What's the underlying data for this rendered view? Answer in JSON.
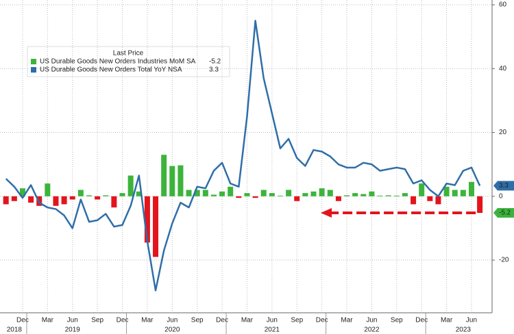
{
  "chart_data": {
    "type": "bar_line",
    "legend_title": "Last Price",
    "categories": [
      null,
      null,
      "Dec",
      null,
      null,
      "Mar",
      null,
      null,
      "Jun",
      null,
      null,
      "Sep",
      null,
      null,
      "Dec",
      null,
      null,
      "Mar",
      null,
      null,
      "Jun",
      null,
      null,
      "Sep",
      null,
      null,
      "Dec",
      null,
      null,
      "Mar",
      null,
      null,
      "Jun",
      null,
      null,
      "Sep",
      null,
      null,
      "Dec",
      null,
      null,
      "Mar",
      null,
      null,
      "Jun",
      null,
      null,
      "Sep",
      null,
      null,
      "Dec",
      null,
      null,
      "Mar",
      null,
      null,
      "Jun",
      null
    ],
    "years": [
      null,
      "2018",
      null,
      null,
      null,
      null,
      null,
      null,
      "2019",
      null,
      null,
      null,
      null,
      null,
      null,
      null,
      null,
      null,
      null,
      null,
      "2020",
      null,
      null,
      null,
      null,
      null,
      null,
      null,
      null,
      null,
      null,
      null,
      "2021",
      null,
      null,
      null,
      null,
      null,
      null,
      null,
      null,
      null,
      null,
      null,
      "2022",
      null,
      null,
      null,
      null,
      null,
      null,
      null,
      null,
      null,
      null,
      "2023",
      null,
      null
    ],
    "series": [
      {
        "name": "US Durable Goods New Orders Industries MoM SA",
        "last": -5.2,
        "type": "bar",
        "color": "#3cb43c",
        "negative_color": "#e3141c",
        "values": [
          -2.5,
          -1.5,
          2.5,
          -2,
          -3,
          4,
          -3,
          -2.5,
          -1,
          2,
          0.3,
          -1,
          0.3,
          -3.5,
          1,
          6.5,
          1.5,
          -14.5,
          -19,
          13,
          9.5,
          9.7,
          2,
          2,
          2,
          0.5,
          1.5,
          3,
          -0.5,
          1,
          -0.5,
          2,
          1,
          0.2,
          2,
          -1.5,
          1,
          1.5,
          2.5,
          2,
          -1.5,
          0.3,
          1,
          0.7,
          1.5,
          0.2,
          0.3,
          0.2,
          1,
          -2.5,
          4,
          -1.5,
          -2.5,
          3,
          2,
          2,
          4.5,
          -5.2
        ]
      },
      {
        "name": "US Durable Goods New Orders Total YoY NSA",
        "last": 3.3,
        "type": "line",
        "color": "#2f6ea8",
        "values": [
          5.5,
          3,
          -0.5,
          3.5,
          -2,
          -3.5,
          -4,
          -6,
          -10,
          -1,
          -8,
          -7.5,
          -5.5,
          -9.5,
          -9,
          -3,
          6.5,
          -14,
          -29.5,
          -17,
          -8.5,
          -2,
          -3.5,
          3,
          2.5,
          8,
          10.5,
          4,
          3,
          25,
          55,
          37,
          26,
          15,
          18,
          12,
          9.5,
          14.5,
          14,
          12.5,
          10,
          9,
          9,
          10.5,
          10,
          8,
          8.5,
          9,
          8.5,
          4,
          5,
          2,
          0,
          4,
          3.5,
          8,
          9,
          3.3
        ]
      }
    ],
    "ylim": [
      -36.5,
      61.5
    ],
    "yticks": [
      -20,
      0,
      20,
      40,
      60
    ],
    "tick_color": "#3a9a3a",
    "grid": true
  }
}
